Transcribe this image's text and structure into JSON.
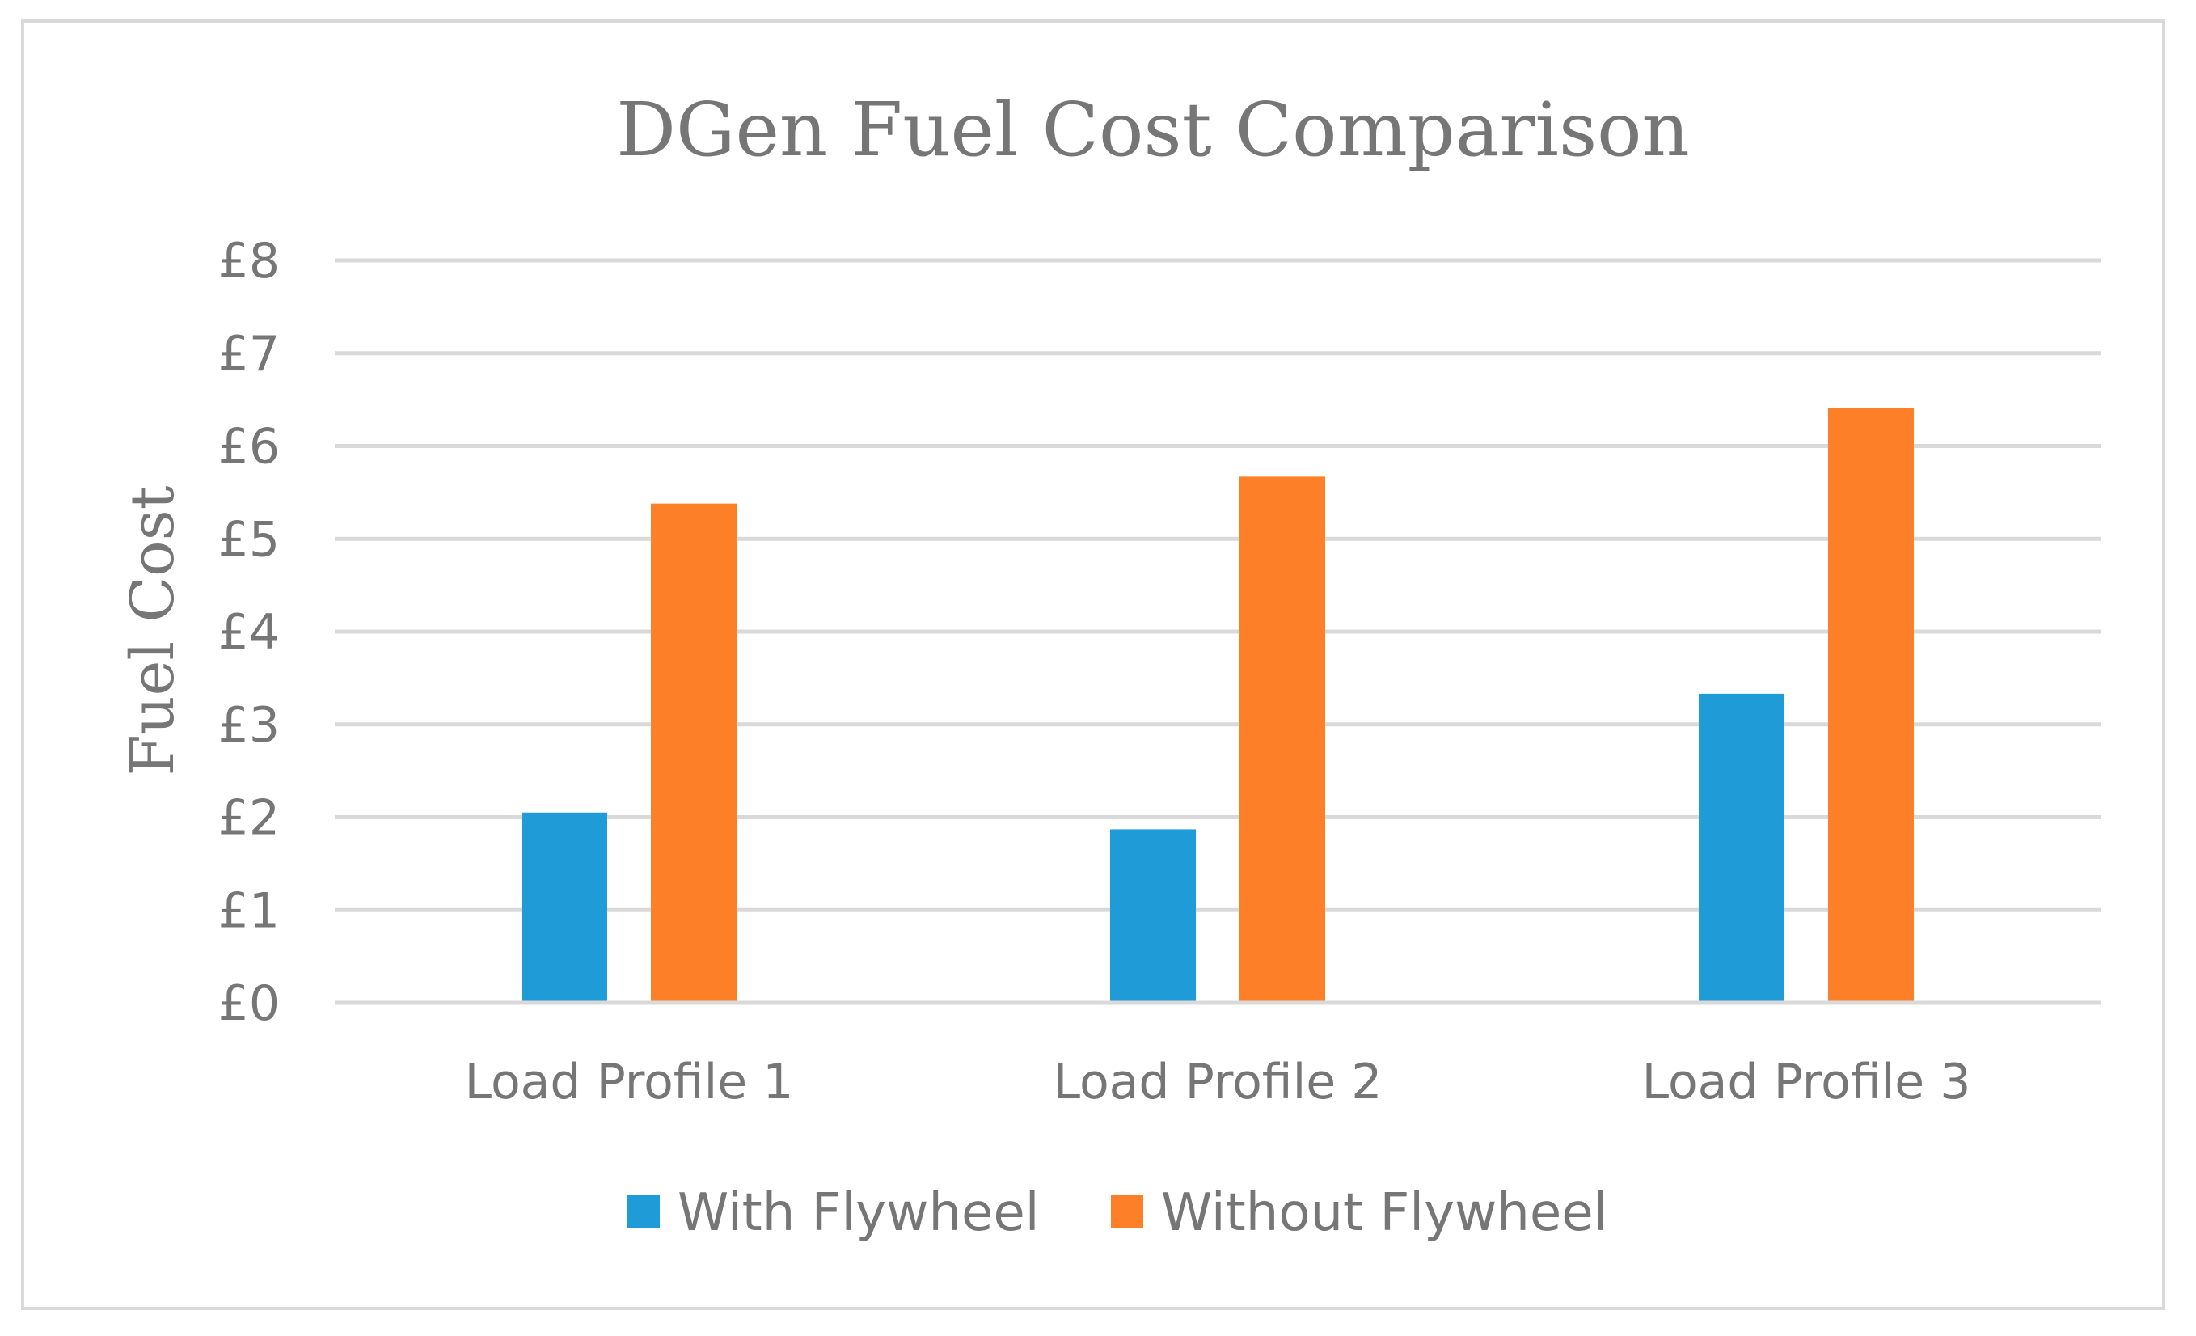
{
  "chart_data": {
    "type": "bar",
    "title": "DGen Fuel Cost Comparison",
    "xlabel": "",
    "ylabel": "Fuel Cost",
    "ylim": [
      0,
      8
    ],
    "yticks": [
      {
        "value": 0,
        "label": "£0"
      },
      {
        "value": 1,
        "label": "£1"
      },
      {
        "value": 2,
        "label": "£2"
      },
      {
        "value": 3,
        "label": "£3"
      },
      {
        "value": 4,
        "label": "£4"
      },
      {
        "value": 5,
        "label": "£5"
      },
      {
        "value": 6,
        "label": "£6"
      },
      {
        "value": 7,
        "label": "£7"
      },
      {
        "value": 8,
        "label": "£8"
      }
    ],
    "grid": true,
    "legend_position": "bottom",
    "categories": [
      "Load Profile 1",
      "Load Profile 2",
      "Load Profile 3"
    ],
    "series": [
      {
        "name": "With Flywheel",
        "color": "#1f9bd7",
        "values": [
          2.05,
          1.87,
          3.33
        ]
      },
      {
        "name": "Without Flywheel",
        "color": "#fd8028",
        "values": [
          5.38,
          5.67,
          6.41
        ]
      }
    ]
  }
}
